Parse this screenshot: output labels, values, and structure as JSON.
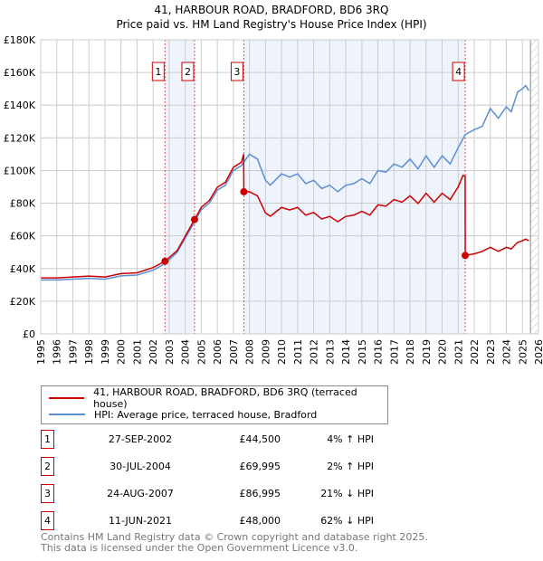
{
  "chart_data": {
    "type": "line",
    "title": "41, HARBOUR ROAD, BRADFORD, BD6 3RQ",
    "subtitle": "Price paid vs. HM Land Registry's House Price Index (HPI)",
    "xlim": [
      1995,
      2026
    ],
    "ylim": [
      0,
      180000
    ],
    "yticks": [
      "£0",
      "£20K",
      "£40K",
      "£60K",
      "£80K",
      "£100K",
      "£120K",
      "£140K",
      "£160K",
      "£180K"
    ],
    "xticks": [
      "1995",
      "1996",
      "1997",
      "1998",
      "1999",
      "2000",
      "2001",
      "2002",
      "2003",
      "2004",
      "2005",
      "2006",
      "2007",
      "2008",
      "2009",
      "2010",
      "2011",
      "2012",
      "2013",
      "2014",
      "2015",
      "2016",
      "2017",
      "2018",
      "2019",
      "2020",
      "2021",
      "2022",
      "2023",
      "2024",
      "2025",
      "2026"
    ],
    "grid": true,
    "series": [
      {
        "name": "41, HARBOUR ROAD, BRADFORD, BD6 3RQ (terraced house)",
        "color": "#cc0000",
        "x": [
          1995,
          1996,
          1997,
          1998,
          1999,
          2000,
          2001,
          2002,
          2002.74,
          2003.5,
          2004.58,
          2005,
          2005.5,
          2006,
          2006.5,
          2007,
          2007.5,
          2007.64,
          2007.65,
          2008,
          2008.5,
          2009,
          2009.3,
          2010,
          2010.5,
          2011,
          2011.5,
          2012,
          2012.5,
          2013,
          2013.5,
          2014,
          2014.5,
          2015,
          2015.5,
          2016,
          2016.5,
          2017,
          2017.5,
          2018,
          2018.5,
          2019,
          2019.5,
          2020,
          2020.5,
          2021,
          2021.3,
          2021.43,
          2021.44,
          2022,
          2022.5,
          2023,
          2023.5,
          2024,
          2024.3,
          2024.7,
          2025,
          2025.2,
          2025.4
        ],
        "y": [
          34300,
          34300,
          34800,
          35400,
          34800,
          36900,
          37400,
          40600,
          44500,
          51000,
          69995,
          77500,
          81600,
          89800,
          92800,
          102000,
          105000,
          110000,
          86995,
          87000,
          84500,
          74000,
          72000,
          77400,
          75800,
          77400,
          72700,
          74300,
          70300,
          71900,
          68700,
          71900,
          72700,
          75000,
          72700,
          79000,
          78200,
          82200,
          80600,
          84500,
          79800,
          86100,
          80600,
          86100,
          82200,
          90000,
          97000,
          96500,
          48000,
          49000,
          50500,
          53000,
          50500,
          53000,
          52000,
          56000,
          57000,
          58000,
          57000
        ]
      },
      {
        "name": "HPI: Average price, terraced house, Bradford",
        "color": "#5b8fd4",
        "x": [
          1995,
          1996,
          1997,
          1998,
          1999,
          2000,
          2001,
          2002,
          2002.74,
          2003.5,
          2004.58,
          2005,
          2005.5,
          2006,
          2006.5,
          2007,
          2007.5,
          2008,
          2008.5,
          2009,
          2009.3,
          2010,
          2010.5,
          2011,
          2011.5,
          2012,
          2012.5,
          2013,
          2013.5,
          2014,
          2014.5,
          2015,
          2015.5,
          2016,
          2016.5,
          2017,
          2017.5,
          2018,
          2018.5,
          2019,
          2019.5,
          2020,
          2020.5,
          2021,
          2021.44,
          2022,
          2022.5,
          2023,
          2023.5,
          2024,
          2024.3,
          2024.7,
          2025,
          2025.2,
          2025.4
        ],
        "y": [
          33000,
          33000,
          33500,
          34000,
          33500,
          35500,
          36000,
          39000,
          43000,
          50000,
          68600,
          76000,
          80000,
          88000,
          91000,
          100000,
          103000,
          110000,
          107000,
          94000,
          91000,
          98000,
          96000,
          98000,
          92000,
          94000,
          89000,
          91000,
          87000,
          91000,
          92000,
          95000,
          92000,
          100000,
          99000,
          104000,
          102000,
          107000,
          101000,
          109000,
          102000,
          109000,
          104000,
          114000,
          122000,
          125000,
          127000,
          138000,
          132000,
          139000,
          136000,
          148000,
          150000,
          152000,
          149000
        ]
      }
    ],
    "sales": [
      {
        "n": "1",
        "x": 2002.74,
        "date": "27-SEP-2002",
        "price": "£44,500",
        "y": 44500,
        "hpi": "4% ↑ HPI"
      },
      {
        "n": "2",
        "x": 2004.58,
        "date": "30-JUL-2004",
        "price": "£69,995",
        "y": 69995,
        "hpi": "2% ↑ HPI"
      },
      {
        "n": "3",
        "x": 2007.65,
        "date": "24-AUG-2007",
        "price": "£86,995",
        "y": 86995,
        "hpi": "21% ↓ HPI"
      },
      {
        "n": "4",
        "x": 2021.44,
        "date": "11-JUN-2021",
        "price": "£48,000",
        "y": 48000,
        "hpi": "62% ↓ HPI"
      }
    ],
    "shaded": [
      [
        2002.74,
        2004.58
      ],
      [
        2007.65,
        2021.44
      ]
    ],
    "hatched_from": 2025.5,
    "legend": "bottom"
  },
  "footer": [
    "Contains HM Land Registry data © Crown copyright and database right 2025.",
    "This data is licensed under the Open Government Licence v3.0."
  ]
}
